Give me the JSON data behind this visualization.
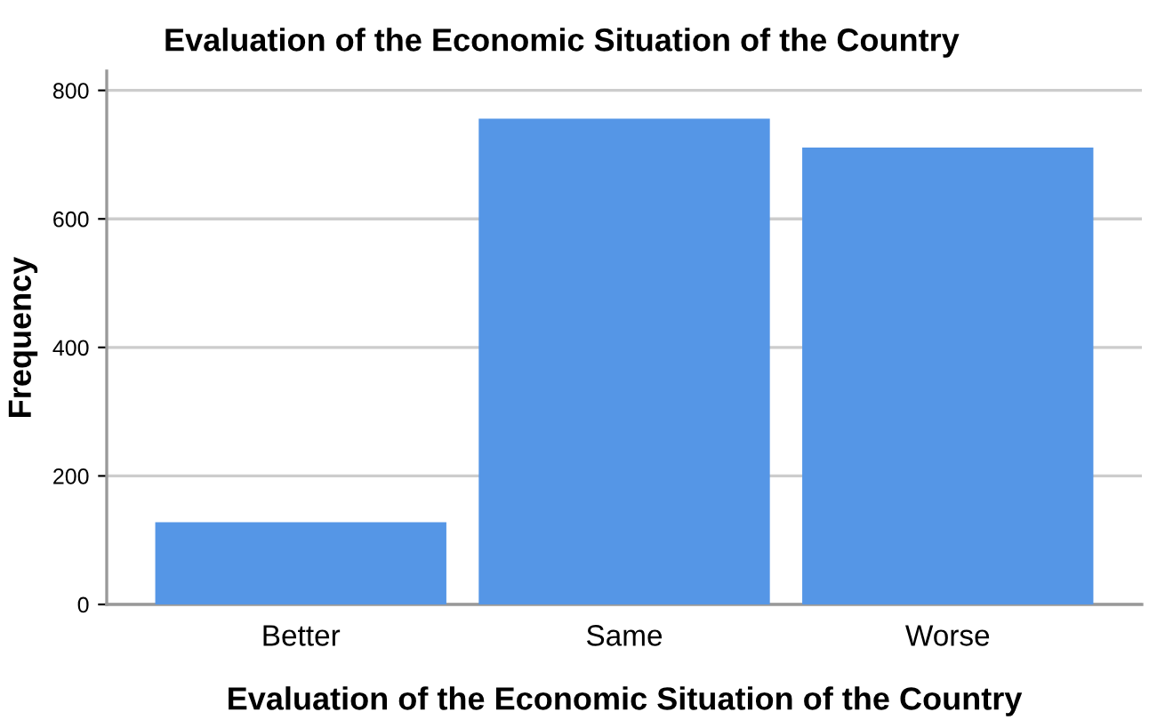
{
  "chart_data": {
    "type": "bar",
    "title": "Evaluation of the Economic Situation of the Country",
    "xlabel": "Evaluation of the Economic Situation of the Country",
    "ylabel": "Frequency",
    "categories": [
      "Better",
      "Same",
      "Worse"
    ],
    "values": [
      128,
      756,
      711
    ],
    "color": "#5596e6",
    "ylim": [
      0,
      830
    ],
    "yticks": [
      0,
      200,
      400,
      600,
      800
    ],
    "grid": "y"
  }
}
